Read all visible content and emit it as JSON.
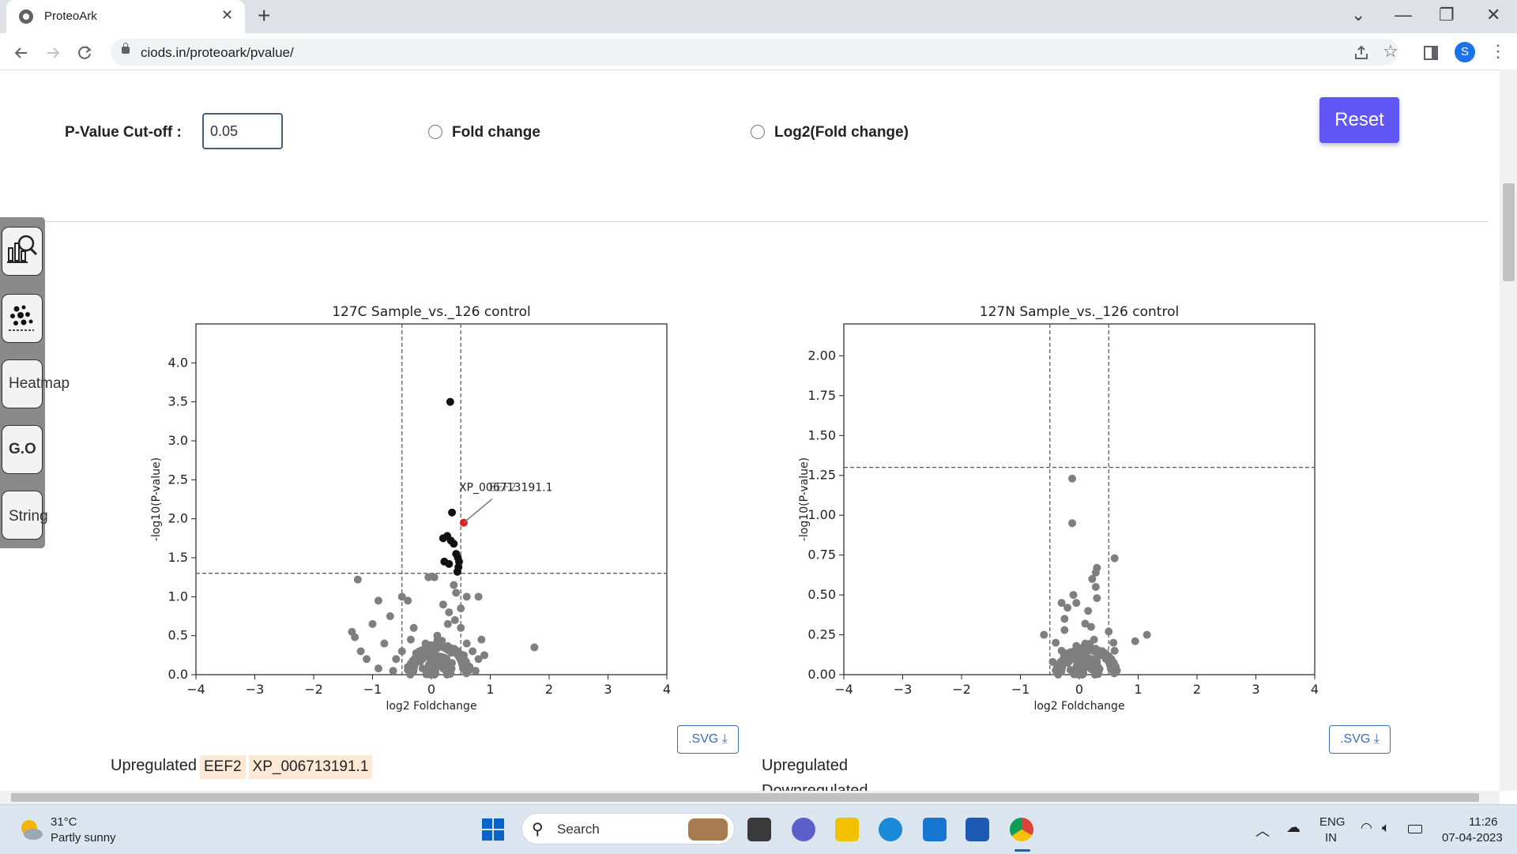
{
  "browser": {
    "tab_title": "ProteoArk",
    "close_glyph": "✕",
    "new_tab_glyph": "+",
    "url": "ciods.in/proteoark/pvalue/",
    "profile_initial": "S",
    "window_controls": [
      "⌄",
      "—",
      "❐",
      "✕"
    ],
    "nav_icons": [
      "arrow-left-icon",
      "arrow-right-icon",
      "reload-icon"
    ]
  },
  "controls": {
    "pvalue_label": "P-Value Cut-off :",
    "pvalue_value": "0.05",
    "radio_fold_change": "Fold change",
    "radio_log2_fold_change": "Log2(Fold change)",
    "reset_label": "Reset"
  },
  "sidebar": {
    "items": [
      {
        "name": "analysis-icon",
        "label": ""
      },
      {
        "name": "scatter-icon",
        "label": ""
      },
      {
        "name": "heatmap",
        "label": "Heatmap"
      },
      {
        "name": "go",
        "label": "G.O"
      },
      {
        "name": "string",
        "label": "String"
      }
    ]
  },
  "chart_data": [
    {
      "type": "scatter",
      "title": "127C Sample_vs._126 control",
      "xlabel": "log2 Foldchange",
      "ylabel": "-log10(P-value)",
      "xlim": [
        -4,
        4
      ],
      "ylim": [
        0,
        4.5
      ],
      "xticks": [
        "−4",
        "−3",
        "−2",
        "−1",
        "0",
        "1",
        "2",
        "3",
        "4"
      ],
      "yticks": [
        "0.0",
        "0.5",
        "1.0",
        "1.5",
        "2.0",
        "2.5",
        "3.0",
        "3.5",
        "4.0"
      ],
      "threshold_lines": {
        "x": [
          -0.5,
          0.5
        ],
        "y": 1.3
      },
      "annotation": {
        "text": "XP_006713191.1",
        "overlap_text": "EEF2",
        "x": 0.55,
        "y": 1.95
      },
      "points_significant": [
        [
          0.32,
          3.5
        ],
        [
          0.35,
          2.08
        ],
        [
          0.55,
          1.95
        ],
        [
          0.2,
          1.75
        ],
        [
          0.27,
          1.78
        ],
        [
          0.33,
          1.72
        ],
        [
          0.38,
          1.68
        ],
        [
          0.42,
          1.55
        ],
        [
          0.45,
          1.5
        ],
        [
          0.47,
          1.45
        ],
        [
          0.46,
          1.38
        ],
        [
          0.44,
          1.32
        ],
        [
          0.22,
          1.45
        ],
        [
          0.3,
          1.42
        ]
      ],
      "points_gray": [
        [
          -1.25,
          1.22
        ],
        [
          -0.05,
          1.25
        ],
        [
          0.05,
          1.25
        ],
        [
          0.8,
          1.0
        ],
        [
          0.6,
          1.0
        ],
        [
          -0.5,
          1.0
        ],
        [
          -0.4,
          0.95
        ],
        [
          -0.9,
          0.95
        ],
        [
          1.75,
          0.35
        ],
        [
          -1.35,
          0.55
        ],
        [
          -1.3,
          0.48
        ],
        [
          -1.0,
          0.65
        ],
        [
          -0.7,
          0.75
        ],
        [
          -0.3,
          0.6
        ],
        [
          0.1,
          0.5
        ],
        [
          0.2,
          0.9
        ],
        [
          0.3,
          0.8
        ],
        [
          0.4,
          0.7
        ],
        [
          0.5,
          0.6
        ],
        [
          0.6,
          0.4
        ],
        [
          0.7,
          0.3
        ],
        [
          0.8,
          0.2
        ],
        [
          0.9,
          0.25
        ],
        [
          -0.8,
          0.4
        ],
        [
          -1.2,
          0.3
        ],
        [
          -1.1,
          0.2
        ],
        [
          -0.6,
          0.2
        ],
        [
          -0.2,
          0.3
        ],
        [
          0.0,
          0.25
        ],
        [
          0.15,
          0.2
        ],
        [
          0.35,
          0.15
        ],
        [
          0.45,
          0.3
        ],
        [
          0.55,
          0.25
        ],
        [
          0.65,
          0.1
        ],
        [
          -0.4,
          0.1
        ],
        [
          -0.15,
          0.08
        ],
        [
          0.05,
          0.05
        ],
        [
          0.25,
          0.05
        ],
        [
          -0.65,
          0.05
        ],
        [
          -0.9,
          0.08
        ],
        [
          0.75,
          0.05
        ],
        [
          -0.35,
          0.45
        ],
        [
          0.38,
          1.15
        ],
        [
          0.42,
          1.05
        ],
        [
          0.5,
          0.85
        ],
        [
          0.28,
          0.65
        ],
        [
          -0.1,
          0.4
        ],
        [
          0.1,
          0.35
        ],
        [
          -0.5,
          0.3
        ],
        [
          0.85,
          0.45
        ]
      ]
    },
    {
      "type": "scatter",
      "title": "127N Sample_vs._126 control",
      "xlabel": "log2 Foldchange",
      "ylabel": "-log10(P-value)",
      "xlim": [
        -4,
        4
      ],
      "ylim": [
        0,
        2.2
      ],
      "xticks": [
        "−4",
        "−3",
        "−2",
        "−1",
        "0",
        "1",
        "2",
        "3",
        "4"
      ],
      "yticks": [
        "0.00",
        "0.25",
        "0.50",
        "0.75",
        "1.00",
        "1.25",
        "1.50",
        "1.75",
        "2.00"
      ],
      "threshold_lines": {
        "x": [
          -0.5,
          0.5
        ],
        "y": 1.3
      },
      "points_gray": [
        [
          -0.12,
          1.23
        ],
        [
          -0.12,
          0.95
        ],
        [
          0.6,
          0.73
        ],
        [
          0.3,
          0.67
        ],
        [
          0.28,
          0.64
        ],
        [
          0.22,
          0.6
        ],
        [
          0.28,
          0.55
        ],
        [
          -0.1,
          0.5
        ],
        [
          0.3,
          0.48
        ],
        [
          -0.05,
          0.45
        ],
        [
          -0.3,
          0.45
        ],
        [
          -0.2,
          0.42
        ],
        [
          0.15,
          0.4
        ],
        [
          -0.25,
          0.35
        ],
        [
          0.1,
          0.32
        ],
        [
          0.2,
          0.3
        ],
        [
          1.15,
          0.25
        ],
        [
          0.95,
          0.21
        ],
        [
          0.58,
          0.2
        ],
        [
          0.5,
          0.27
        ],
        [
          -0.6,
          0.25
        ],
        [
          -0.4,
          0.2
        ],
        [
          -0.3,
          0.15
        ],
        [
          -0.2,
          0.12
        ],
        [
          -0.1,
          0.1
        ],
        [
          0.0,
          0.08
        ],
        [
          0.1,
          0.06
        ],
        [
          0.2,
          0.05
        ],
        [
          0.3,
          0.08
        ],
        [
          -0.15,
          0.03
        ],
        [
          0.05,
          0.02
        ],
        [
          0.15,
          0.15
        ],
        [
          -0.05,
          0.18
        ],
        [
          0.35,
          0.12
        ],
        [
          0.45,
          0.1
        ],
        [
          -0.45,
          0.08
        ],
        [
          0.6,
          0.15
        ],
        [
          0.25,
          0.22
        ],
        [
          -0.25,
          0.28
        ]
      ]
    }
  ],
  "exports": {
    "svg_label": ".SVG"
  },
  "regulation": {
    "upregulated_label": "Upregulated",
    "downregulated_label": "Downregulated",
    "chart1_up_genes": [
      "EEF2",
      "XP_006713191.1"
    ]
  },
  "taskbar": {
    "weather_temp": "31°C",
    "weather_desc": "Partly sunny",
    "search_placeholder": "Search",
    "lang_top": "ENG",
    "lang_bottom": "IN",
    "time": "11:26",
    "date": "07-04-2023"
  },
  "colors": {
    "accent": "#6157f7",
    "significant_point": "#111111",
    "highlight_point": "#e02020",
    "gray_point": "#7f7f7f"
  }
}
